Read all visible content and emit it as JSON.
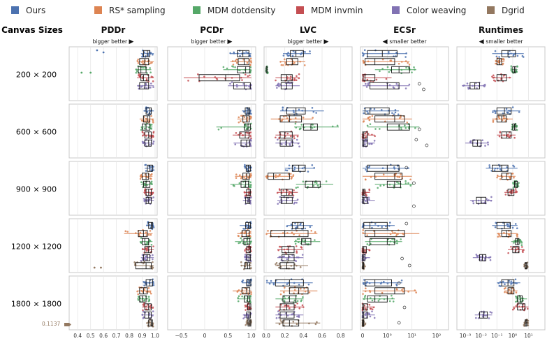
{
  "legend": [
    {
      "name": "Ours",
      "color": "#4c72b0"
    },
    {
      "name": "RS* sampling",
      "color": "#dd8452"
    },
    {
      "name": "MDM dotdensity",
      "color": "#55a868"
    },
    {
      "name": "MDM invmin",
      "color": "#c44e52"
    },
    {
      "name": "Color weaving",
      "color": "#8172b3"
    },
    {
      "name": "Dgrid",
      "color": "#937860"
    }
  ],
  "row_header": "Canvas Sizes",
  "rows": [
    "200 × 200",
    "600 × 600",
    "900 × 900",
    "1200 × 1200",
    "1800 × 1800"
  ],
  "outlier_label": "0.1137",
  "chart_data": [
    {
      "type": "box",
      "title": "PDDr",
      "subtitle": "bigger better",
      "direction": "right",
      "scale": "linear",
      "xlim": [
        0.35,
        1.0
      ],
      "ticks": [
        0.4,
        0.5,
        0.6,
        0.7,
        0.8,
        0.9,
        1.0
      ],
      "tick_labels": [
        "0.4",
        "0.5",
        "0.6",
        "0.7",
        "0.8",
        "0.9",
        "1.0"
      ],
      "boxes": [
        [
          [
            0.89,
            0.91,
            0.94,
            0.96,
            0.99
          ],
          [
            0.86,
            0.88,
            0.92,
            0.95,
            0.99
          ],
          [
            0.85,
            0.87,
            0.89,
            0.93,
            0.97
          ],
          [
            0.86,
            0.89,
            0.91,
            0.95,
            0.99
          ],
          [
            0.86,
            0.88,
            0.92,
            0.95,
            0.99
          ],
          null
        ],
        [
          [
            0.91,
            0.93,
            0.96,
            0.97,
            0.99
          ],
          [
            0.88,
            0.91,
            0.94,
            0.96,
            0.99
          ],
          [
            0.89,
            0.9,
            0.93,
            0.96,
            0.98
          ],
          [
            0.9,
            0.92,
            0.95,
            0.97,
            0.99
          ],
          [
            0.9,
            0.92,
            0.95,
            0.97,
            0.99
          ],
          null
        ],
        [
          [
            0.92,
            0.94,
            0.96,
            0.98,
            0.99
          ],
          [
            0.88,
            0.9,
            0.93,
            0.95,
            0.98
          ],
          [
            0.89,
            0.91,
            0.93,
            0.96,
            0.98
          ],
          [
            0.91,
            0.93,
            0.95,
            0.97,
            0.99
          ],
          [
            0.91,
            0.93,
            0.95,
            0.97,
            0.99
          ],
          null
        ],
        [
          [
            0.93,
            0.95,
            0.97,
            0.98,
            0.99
          ],
          [
            0.76,
            0.87,
            0.91,
            0.94,
            0.98
          ],
          [
            0.88,
            0.9,
            0.92,
            0.95,
            0.98
          ],
          [
            0.9,
            0.92,
            0.95,
            0.97,
            0.99
          ],
          [
            0.89,
            0.91,
            0.94,
            0.96,
            0.99
          ],
          [
            0.84,
            0.85,
            0.93,
            0.97,
            0.99
          ]
        ],
        [
          [
            0.91,
            0.93,
            0.96,
            0.98,
            0.99
          ],
          [
            0.86,
            0.88,
            0.91,
            0.94,
            0.97
          ],
          [
            0.86,
            0.88,
            0.9,
            0.93,
            0.96
          ],
          [
            0.9,
            0.92,
            0.95,
            0.97,
            0.99
          ],
          [
            0.9,
            0.92,
            0.95,
            0.97,
            0.99
          ],
          [
            0.93,
            0.95,
            0.97,
            0.98,
            0.99
          ]
        ]
      ]
    },
    {
      "type": "box",
      "title": "PCDr",
      "subtitle": "bigger better",
      "direction": "right",
      "scale": "linear",
      "xlim": [
        -0.75,
        1.05
      ],
      "ticks": [
        -0.5,
        0,
        0.5,
        1.0
      ],
      "tick_labels": [
        "−0.5",
        "0",
        "0.5",
        "1.0"
      ],
      "boxes": [
        [
          [
            0.55,
            0.7,
            0.82,
            0.95,
            1.0
          ],
          [
            0.55,
            0.72,
            0.85,
            0.95,
            1.0
          ],
          [
            0.4,
            0.7,
            0.88,
            0.97,
            1.0
          ],
          [
            -0.45,
            -0.12,
            0.45,
            0.75,
            1.0
          ],
          [
            0.5,
            0.62,
            0.85,
            0.98,
            1.0
          ],
          null
        ],
        [
          [
            0.8,
            0.87,
            0.93,
            0.97,
            1.0
          ],
          [
            0.7,
            0.82,
            0.9,
            0.96,
            1.0
          ],
          [
            0.25,
            0.85,
            0.93,
            0.98,
            1.0
          ],
          [
            0.6,
            0.75,
            0.87,
            0.95,
            1.0
          ],
          [
            0.62,
            0.78,
            0.9,
            0.97,
            1.0
          ],
          null
        ],
        [
          [
            0.85,
            0.89,
            0.94,
            0.98,
            1.0
          ],
          [
            0.65,
            0.82,
            0.9,
            0.96,
            1.0
          ],
          [
            0.55,
            0.78,
            0.88,
            0.94,
            1.0
          ],
          [
            0.85,
            0.9,
            0.95,
            0.98,
            1.0
          ],
          [
            0.82,
            0.88,
            0.93,
            0.97,
            1.0
          ],
          null
        ],
        [
          [
            0.75,
            0.88,
            0.94,
            0.98,
            1.0
          ],
          [
            0.7,
            0.8,
            0.89,
            0.96,
            1.0
          ],
          [
            0.65,
            0.84,
            0.91,
            0.97,
            1.0
          ],
          [
            0.85,
            0.9,
            0.95,
            0.98,
            1.0
          ],
          [
            0.85,
            0.9,
            0.95,
            0.98,
            1.0
          ],
          [
            0.78,
            0.86,
            0.92,
            0.97,
            1.0
          ]
        ],
        [
          [
            0.8,
            0.9,
            0.95,
            0.99,
            1.0
          ],
          [
            0.6,
            0.8,
            0.9,
            0.97,
            1.0
          ],
          [
            0.7,
            0.85,
            0.92,
            0.97,
            1.0
          ],
          [
            0.85,
            0.92,
            0.96,
            0.99,
            1.0
          ],
          [
            0.82,
            0.9,
            0.95,
            0.98,
            1.0
          ],
          [
            0.88,
            0.93,
            0.97,
            0.99,
            1.0
          ]
        ]
      ]
    },
    {
      "type": "box",
      "title": "LVC",
      "subtitle": "bigger better",
      "direction": "right",
      "scale": "linear",
      "xlim": [
        0.0,
        0.9
      ],
      "ticks": [
        0.0,
        0.2,
        0.4,
        0.6,
        0.8
      ],
      "tick_labels": [
        "0.0",
        "0.2",
        "0.4",
        "0.6",
        "0.8"
      ],
      "boxes": [
        [
          [
            0.18,
            0.26,
            0.32,
            0.4,
            0.48
          ],
          [
            0.15,
            0.22,
            0.28,
            0.34,
            0.42
          ],
          [
            0.0,
            0.0,
            0.0,
            0.01,
            0.02
          ],
          [
            0.1,
            0.16,
            0.22,
            0.28,
            0.36
          ],
          [
            0.1,
            0.16,
            0.22,
            0.28,
            0.36
          ],
          null
        ],
        [
          [
            0.15,
            0.22,
            0.32,
            0.42,
            0.62
          ],
          [
            0.05,
            0.15,
            0.25,
            0.38,
            0.5
          ],
          [
            0.3,
            0.4,
            0.48,
            0.55,
            0.78
          ],
          [
            0.1,
            0.15,
            0.2,
            0.28,
            0.35
          ],
          [
            0.1,
            0.15,
            0.22,
            0.28,
            0.36
          ],
          null
        ],
        [
          [
            0.2,
            0.28,
            0.35,
            0.42,
            0.52
          ],
          [
            0.0,
            0.02,
            0.08,
            0.25,
            0.3
          ],
          [
            0.32,
            0.42,
            0.5,
            0.58,
            0.72
          ],
          [
            0.12,
            0.16,
            0.22,
            0.28,
            0.34
          ],
          [
            0.12,
            0.16,
            0.22,
            0.28,
            0.34
          ],
          null
        ],
        [
          [
            0.22,
            0.28,
            0.34,
            0.4,
            0.5
          ],
          [
            0.0,
            0.05,
            0.2,
            0.45,
            0.55
          ],
          [
            0.3,
            0.38,
            0.42,
            0.48,
            0.58
          ],
          [
            0.12,
            0.17,
            0.24,
            0.3,
            0.4
          ],
          [
            0.12,
            0.17,
            0.24,
            0.3,
            0.4
          ],
          [
            0.1,
            0.15,
            0.22,
            0.3,
            0.45
          ]
        ],
        [
          [
            0.0,
            0.1,
            0.25,
            0.4,
            0.5
          ],
          [
            0.15,
            0.25,
            0.35,
            0.45,
            0.55
          ],
          [
            0.1,
            0.18,
            0.25,
            0.32,
            0.4
          ],
          [
            0.1,
            0.15,
            0.22,
            0.3,
            0.4
          ],
          [
            0.1,
            0.15,
            0.22,
            0.3,
            0.4
          ],
          [
            0.1,
            0.18,
            0.25,
            0.35,
            0.58
          ]
        ]
      ]
    },
    {
      "type": "box",
      "title": "ECSr",
      "subtitle": "smaller better",
      "direction": "left",
      "scale": "symlog",
      "xlim": [
        0,
        250
      ],
      "ticks": [
        0,
        1,
        10,
        100
      ],
      "tick_labels": [
        "0",
        "10⁰",
        "10¹",
        "10²"
      ],
      "boxes": [
        [
          [
            0.0,
            0.2,
            0.8,
            2.5,
            6.0
          ],
          [
            0.0,
            0.1,
            0.5,
            2.0,
            8.0
          ],
          [
            0.5,
            1.5,
            3.0,
            8.0,
            15.0
          ],
          [
            0.0,
            0.02,
            0.1,
            0.5,
            1.5
          ],
          [
            0.0,
            0.3,
            1.0,
            3.0,
            8.0
          ],
          null
        ],
        [
          [
            0.0,
            0.1,
            0.3,
            1.2,
            3.0
          ],
          [
            0.0,
            0.5,
            2.0,
            5.0,
            10.0
          ],
          [
            0.2,
            1.0,
            3.0,
            8.0,
            20.0
          ],
          [
            0.0,
            0.0,
            0.05,
            0.2,
            0.5
          ],
          [
            0.0,
            0.0,
            0.05,
            0.2,
            0.5
          ],
          null
        ],
        [
          [
            0.0,
            0.2,
            1.0,
            3.0,
            8.0
          ],
          [
            0.0,
            0.5,
            2.0,
            4.0,
            10.0
          ],
          [
            0.5,
            1.0,
            2.0,
            3.5,
            12.0
          ],
          [
            0.0,
            0.0,
            0.05,
            0.1,
            0.3
          ],
          [
            0.0,
            0.0,
            0.05,
            0.2,
            0.5
          ],
          null
        ],
        [
          [
            0.0,
            0.05,
            0.3,
            1.0,
            2.0
          ],
          [
            0.0,
            0.1,
            0.5,
            5.0,
            20.0
          ],
          [
            0.1,
            0.3,
            1.0,
            2.0,
            4.0
          ],
          [
            0.0,
            0.0,
            0.05,
            0.15,
            0.3
          ],
          [
            0.0,
            0.0,
            0.03,
            0.1,
            0.3
          ],
          [
            0.0,
            0.0,
            0.02,
            0.05,
            0.1
          ]
        ],
        [
          [
            0.0,
            0.1,
            0.5,
            1.5,
            4.0
          ],
          [
            0.0,
            0.5,
            2.0,
            5.0,
            15.0
          ],
          [
            0.0,
            0.2,
            0.5,
            1.0,
            2.0
          ],
          [
            0.0,
            0.0,
            0.05,
            0.2,
            0.5
          ],
          [
            0.0,
            0.0,
            0.05,
            0.2,
            0.5
          ],
          [
            0.0,
            0.0,
            0.02,
            0.05,
            0.15
          ]
        ]
      ]
    },
    {
      "type": "box",
      "title": "Runtimes",
      "subtitle": "smaller better",
      "direction": "left",
      "scale": "log",
      "xlim": [
        0.0004,
        80
      ],
      "ticks": [
        0.001,
        0.01,
        0.1,
        1,
        10
      ],
      "tick_labels": [
        "10⁻³",
        "10⁻²",
        "10⁻¹",
        "10⁰",
        "10¹"
      ],
      "boxes": [
        [
          [
            0.05,
            0.2,
            0.5,
            1.5,
            5.0
          ],
          [
            0.08,
            0.1,
            0.15,
            0.2,
            0.3
          ],
          [
            0.8,
            1.0,
            1.3,
            1.6,
            2.0
          ],
          [
            0.05,
            0.1,
            0.2,
            0.4,
            0.8
          ],
          [
            0.0006,
            0.002,
            0.004,
            0.008,
            0.02
          ],
          null
        ],
        [
          [
            0.05,
            0.1,
            0.3,
            0.8,
            3.0
          ],
          [
            0.05,
            0.1,
            0.2,
            0.4,
            1.0
          ],
          [
            0.8,
            1.0,
            1.3,
            1.6,
            2.0
          ],
          [
            0.1,
            0.2,
            0.4,
            0.8,
            1.5
          ],
          [
            0.001,
            0.003,
            0.006,
            0.01,
            0.03
          ],
          null
        ],
        [
          [
            0.02,
            0.05,
            0.2,
            0.5,
            2.0
          ],
          [
            0.1,
            0.2,
            0.4,
            0.8,
            1.5
          ],
          [
            1.0,
            1.3,
            1.6,
            2.0,
            2.5
          ],
          [
            0.3,
            0.5,
            0.8,
            1.2,
            2.0
          ],
          [
            0.002,
            0.005,
            0.01,
            0.02,
            0.05
          ],
          null
        ],
        [
          [
            0.05,
            0.1,
            0.3,
            0.7,
            2.0
          ],
          [
            0.1,
            0.2,
            0.4,
            0.8,
            2.0
          ],
          [
            0.8,
            1.5,
            2.0,
            2.5,
            4.0
          ],
          [
            0.5,
            1.0,
            1.5,
            2.5,
            5.0
          ],
          [
            0.003,
            0.008,
            0.012,
            0.02,
            0.04
          ],
          [
            5.0,
            6.0,
            7.0,
            8.0,
            9.0
          ]
        ],
        [
          [
            0.1,
            0.2,
            0.5,
            1.2,
            3.0
          ],
          [
            0.3,
            0.5,
            0.8,
            1.2,
            2.0
          ],
          [
            1.5,
            2.0,
            3.0,
            4.0,
            8.0
          ],
          [
            1.0,
            2.0,
            4.0,
            6.0,
            10.0
          ],
          [
            0.004,
            0.008,
            0.015,
            0.025,
            0.05
          ],
          [
            5.0,
            6.0,
            7.0,
            8.0,
            10.0
          ]
        ]
      ]
    }
  ]
}
